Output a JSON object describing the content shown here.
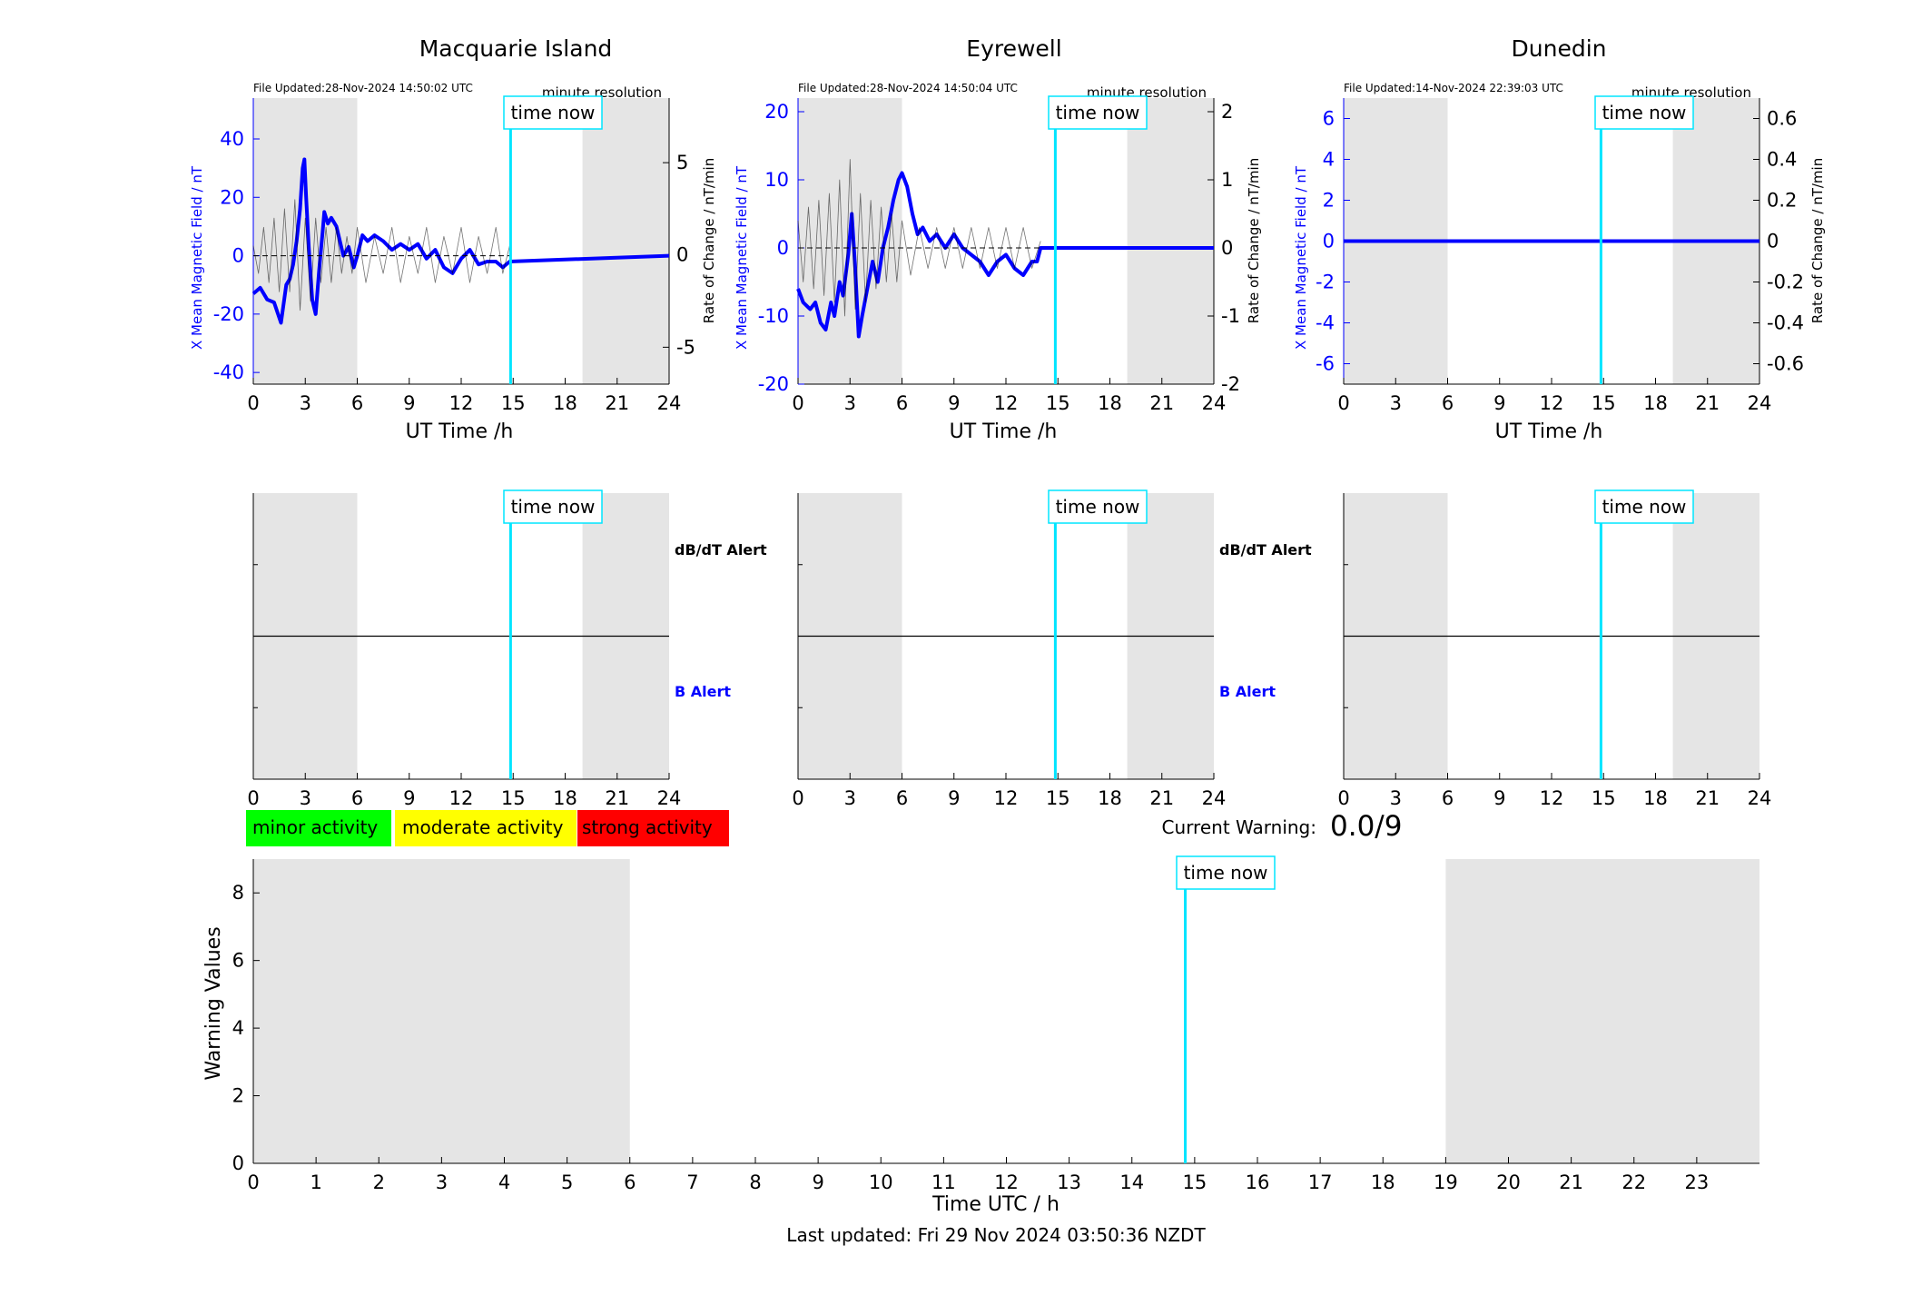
{
  "colors": {
    "field": "#0000ff",
    "rate": "#000000",
    "now_line": "#00e5ff",
    "shade": "#e5e5e5",
    "minor": "#00ff00",
    "moderate": "#ffff00",
    "strong": "#ff0000",
    "b_alert": "#0000ff"
  },
  "labels": {
    "time_now": "time now",
    "minute_resolution": "minute resolution",
    "ut_time": "UT Time /h",
    "y_left": "X Mean Magnetic Field / nT",
    "y_right": "Rate of Change / nT/min",
    "dbdt_alert": "dB/dT Alert",
    "b_alert": "B Alert"
  },
  "legend": {
    "minor": "minor activity",
    "moderate": "moderate activity",
    "strong": "strong activity"
  },
  "warning": {
    "label": "Current Warning:",
    "value": "0.0/9"
  },
  "footer": {
    "last_updated": "Last updated: Fri 29 Nov 2024 03:50:36 NZDT"
  },
  "chart_data": [
    {
      "type": "line",
      "title": "Macquarie Island",
      "file_updated": "File Updated:28-Nov-2024 14:50:02 UTC",
      "xlabel": "UT Time /h",
      "ylabel": "X Mean Magnetic Field / nT",
      "ylabel_right": "Rate of Change / nT/min",
      "xlim": [
        0,
        24
      ],
      "ylim": [
        -44,
        54
      ],
      "ylim_right": [
        -7,
        8.5
      ],
      "xticks": [
        0,
        3,
        6,
        9,
        12,
        15,
        18,
        21,
        24
      ],
      "yticks": [
        -40,
        -20,
        0,
        20,
        40
      ],
      "yticks_right": [
        -5,
        0,
        5
      ],
      "time_now": 14.85,
      "shaded": [
        [
          0,
          6
        ],
        [
          19,
          24
        ]
      ],
      "data_end": 14.8,
      "series": [
        {
          "name": "X Mean Magnetic Field / nT",
          "x": [
            0,
            0.4,
            0.8,
            1.2,
            1.6,
            1.9,
            2.1,
            2.3,
            2.5,
            2.7,
            2.85,
            2.95,
            3.05,
            3.2,
            3.4,
            3.6,
            3.8,
            4.0,
            4.1,
            4.3,
            4.5,
            4.8,
            5.2,
            5.5,
            5.8,
            6.0,
            6.3,
            6.6,
            7.0,
            7.5,
            8.0,
            8.5,
            9.0,
            9.5,
            10.0,
            10.5,
            11.0,
            11.5,
            12.0,
            12.5,
            13.0,
            13.5,
            14.0,
            14.4,
            14.8,
            24
          ],
          "y": [
            -13,
            -11,
            -15,
            -16,
            -23,
            -10,
            -8,
            -3,
            5,
            16,
            30,
            33,
            20,
            3,
            -15,
            -20,
            -5,
            8,
            15,
            11,
            13,
            10,
            0,
            3,
            -4,
            0,
            7,
            5,
            7,
            5,
            2,
            4,
            2,
            4,
            -1,
            2,
            -4,
            -6,
            -1,
            2,
            -3,
            -2,
            -2,
            -4,
            -2,
            0
          ]
        },
        {
          "name": "Rate of Change / nT/min",
          "x": [
            0,
            0.3,
            0.6,
            0.9,
            1.2,
            1.5,
            1.8,
            2.1,
            2.4,
            2.7,
            3.0,
            3.3,
            3.6,
            3.9,
            4.2,
            4.5,
            4.8,
            5.1,
            5.4,
            5.7,
            6.0,
            6.5,
            7.0,
            7.5,
            8.0,
            8.5,
            9.0,
            9.5,
            10.0,
            10.5,
            11.0,
            11.5,
            12.0,
            12.5,
            13.0,
            13.5,
            14.0,
            14.4,
            14.8
          ],
          "y": [
            0.5,
            -1,
            1.5,
            -1.5,
            2,
            -2,
            2.5,
            -2,
            3,
            -3,
            2,
            -2.5,
            2,
            -1.5,
            1.5,
            -1.5,
            1.5,
            -1,
            1,
            -1,
            1.5,
            -1.5,
            1,
            -1,
            1.5,
            -1.5,
            1,
            -1,
            1.5,
            -1.5,
            1,
            -1,
            1.5,
            -1.5,
            1,
            -1,
            1.5,
            -1,
            0.5
          ]
        }
      ]
    },
    {
      "type": "line",
      "title": "Eyrewell",
      "file_updated": "File Updated:28-Nov-2024 14:50:04 UTC",
      "xlabel": "UT Time /h",
      "ylabel": "X Mean Magnetic Field / nT",
      "ylabel_right": "Rate of Change / nT/min",
      "xlim": [
        0,
        24
      ],
      "ylim": [
        -20,
        22
      ],
      "ylim_right": [
        -2,
        2.2
      ],
      "xticks": [
        0,
        3,
        6,
        9,
        12,
        15,
        18,
        21,
        24
      ],
      "yticks": [
        -20,
        -10,
        0,
        10,
        20
      ],
      "yticks_right": [
        -2,
        -1,
        0,
        1,
        2
      ],
      "time_now": 14.85,
      "shaded": [
        [
          0,
          6
        ],
        [
          19,
          24
        ]
      ],
      "data_end": 14.0,
      "series": [
        {
          "name": "X Mean Magnetic Field / nT",
          "x": [
            0,
            0.3,
            0.7,
            1.0,
            1.3,
            1.6,
            1.9,
            2.1,
            2.4,
            2.6,
            2.9,
            3.1,
            3.3,
            3.5,
            3.7,
            4.0,
            4.3,
            4.6,
            4.9,
            5.2,
            5.5,
            5.8,
            6.0,
            6.3,
            6.6,
            6.9,
            7.2,
            7.6,
            8.0,
            8.5,
            9.0,
            9.5,
            10.0,
            10.5,
            11.0,
            11.5,
            12.0,
            12.5,
            13.0,
            13.5,
            13.8,
            14.0,
            24
          ],
          "y": [
            -6,
            -8,
            -9,
            -8,
            -11,
            -12,
            -8,
            -10,
            -5,
            -7,
            -1,
            5,
            -3,
            -13,
            -10,
            -6,
            -2,
            -5,
            0,
            3,
            7,
            10,
            11,
            9,
            5,
            2,
            3,
            1,
            2,
            0,
            2,
            0,
            -1,
            -2,
            -4,
            -2,
            -1,
            -3,
            -4,
            -2,
            -2,
            0,
            0
          ]
        },
        {
          "name": "Rate of Change / nT/min",
          "x": [
            0,
            0.3,
            0.6,
            0.9,
            1.2,
            1.5,
            1.8,
            2.1,
            2.4,
            2.7,
            3.0,
            3.3,
            3.6,
            3.9,
            4.2,
            4.5,
            4.8,
            5.1,
            5.4,
            5.7,
            6.0,
            6.5,
            7.0,
            7.5,
            8.0,
            8.5,
            9.0,
            9.5,
            10.0,
            10.5,
            11.0,
            11.5,
            12.0,
            12.5,
            13.0,
            13.5,
            14.0
          ],
          "y": [
            0.4,
            -0.5,
            0.6,
            -0.6,
            0.7,
            -0.7,
            0.8,
            -0.8,
            1.0,
            -1.0,
            1.3,
            -0.9,
            0.8,
            -0.8,
            0.7,
            -0.6,
            0.6,
            -0.5,
            0.5,
            -0.5,
            0.4,
            -0.4,
            0.3,
            -0.3,
            0.3,
            -0.3,
            0.3,
            -0.3,
            0.3,
            -0.3,
            0.3,
            -0.3,
            0.3,
            -0.3,
            0.3,
            -0.3,
            0.1
          ]
        }
      ]
    },
    {
      "type": "line",
      "title": "Dunedin",
      "file_updated": "File Updated:14-Nov-2024 22:39:03 UTC",
      "xlabel": "UT Time /h",
      "ylabel": "X Mean Magnetic Field / nT",
      "ylabel_right": "Rate of Change / nT/min",
      "xlim": [
        0,
        24
      ],
      "ylim": [
        -7,
        7
      ],
      "ylim_right": [
        -0.7,
        0.7
      ],
      "xticks": [
        0,
        3,
        6,
        9,
        12,
        15,
        18,
        21,
        24
      ],
      "yticks": [
        -6,
        -4,
        -2,
        0,
        2,
        4,
        6
      ],
      "yticks_right": [
        -0.6,
        -0.4,
        -0.2,
        0,
        0.2,
        0.4,
        0.6
      ],
      "time_now": 14.85,
      "shaded": [
        [
          0,
          6
        ],
        [
          19,
          24
        ]
      ],
      "data_end": 0,
      "series": [
        {
          "name": "X Mean Magnetic Field / nT",
          "x": [
            0,
            24
          ],
          "y": [
            0,
            0
          ]
        }
      ]
    },
    {
      "type": "line",
      "title": "",
      "xlabel": "",
      "xlim": [
        0,
        24
      ],
      "xticks": [
        0,
        3,
        6,
        9,
        12,
        15,
        18,
        21,
        24
      ],
      "time_now": 14.85,
      "shaded": [
        [
          0,
          6
        ],
        [
          19,
          24
        ]
      ],
      "series": []
    },
    {
      "type": "line",
      "title": "",
      "xlabel": "",
      "xlim": [
        0,
        24
      ],
      "xticks": [
        0,
        3,
        6,
        9,
        12,
        15,
        18,
        21,
        24
      ],
      "time_now": 14.85,
      "shaded": [
        [
          0,
          6
        ],
        [
          19,
          24
        ]
      ],
      "series": []
    },
    {
      "type": "line",
      "title": "",
      "xlabel": "",
      "xlim": [
        0,
        24
      ],
      "xticks": [
        0,
        3,
        6,
        9,
        12,
        15,
        18,
        21,
        24
      ],
      "time_now": 14.85,
      "shaded": [
        [
          0,
          6
        ],
        [
          19,
          24
        ]
      ],
      "series": []
    },
    {
      "type": "line",
      "title": "",
      "xlabel": "Time UTC / h",
      "ylabel": "Warning Values",
      "xlim": [
        0,
        24
      ],
      "ylim": [
        0,
        9
      ],
      "xticks": [
        0,
        1,
        2,
        3,
        4,
        5,
        6,
        7,
        8,
        9,
        10,
        11,
        12,
        13,
        14,
        15,
        16,
        17,
        18,
        19,
        20,
        21,
        22,
        23
      ],
      "yticks": [
        0,
        2,
        4,
        6,
        8
      ],
      "time_now": 14.85,
      "shaded": [
        [
          0,
          6
        ],
        [
          19,
          24
        ]
      ],
      "series": []
    }
  ]
}
